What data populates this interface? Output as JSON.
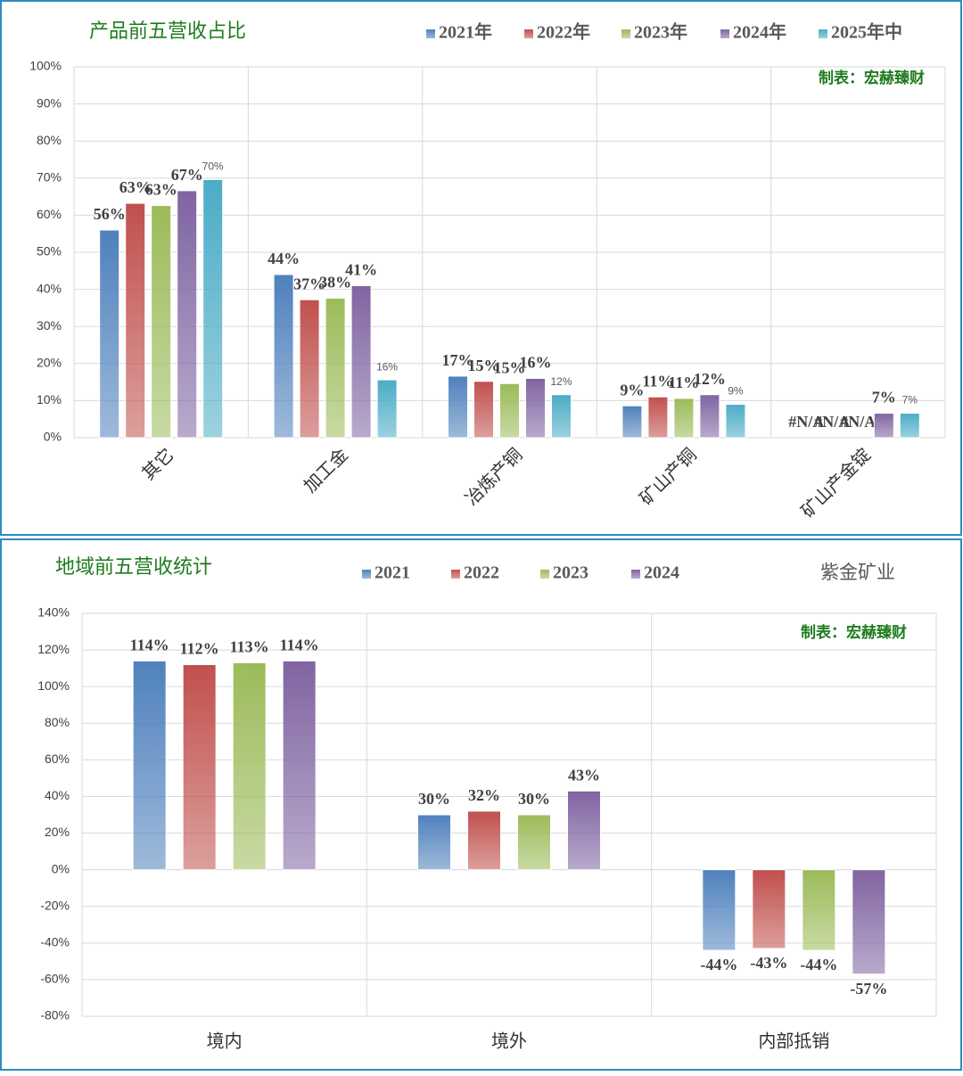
{
  "chart_data": [
    {
      "type": "bar",
      "title": "产品前五营收占比",
      "annotation": "制表：宏赫臻财",
      "categories": [
        "其它",
        "加工金",
        "冶炼产铜",
        "矿山产铜",
        "矿山产金锭"
      ],
      "series": [
        {
          "name": "2021年",
          "color": "#4f81bd",
          "values": [
            56,
            44,
            16.6,
            8.6,
            null
          ],
          "value_labels": [
            "56%",
            "44%",
            "17%",
            "9%",
            "#N/A"
          ]
        },
        {
          "name": "2022年",
          "color": "#c0504d",
          "values": [
            63.2,
            37.2,
            15.2,
            11,
            null
          ],
          "value_labels": [
            "63%",
            "37%",
            "15%",
            "11%",
            "#N/A"
          ]
        },
        {
          "name": "2023年",
          "color": "#9bbb59",
          "values": [
            62.6,
            37.6,
            14.6,
            10.6,
            null
          ],
          "value_labels": [
            "63%",
            "38%",
            "15%",
            "11%",
            "#N/A"
          ]
        },
        {
          "name": "2024年",
          "color": "#8064a2",
          "values": [
            66.6,
            41,
            16,
            11.6,
            6.6
          ],
          "value_labels": [
            "67%",
            "41%",
            "16%",
            "12%",
            "7%"
          ]
        },
        {
          "name": "2025年中",
          "color": "#4bacc6",
          "values": [
            69.6,
            15.6,
            11.6,
            9,
            6.6
          ],
          "value_labels": [
            "70%",
            "16%",
            "12%",
            "9%",
            "7%"
          ]
        }
      ],
      "ylim": [
        0,
        100
      ],
      "yticks": [
        {
          "value": 0,
          "label": "0%"
        },
        {
          "value": 10,
          "label": "10%"
        },
        {
          "value": 20,
          "label": "20%"
        },
        {
          "value": 30,
          "label": "30%"
        },
        {
          "value": 40,
          "label": "40%"
        },
        {
          "value": 50,
          "label": "50%"
        },
        {
          "value": 60,
          "label": "60%"
        },
        {
          "value": 70,
          "label": "70%"
        },
        {
          "value": 80,
          "label": "80%"
        },
        {
          "value": 90,
          "label": "90%"
        },
        {
          "value": 100,
          "label": "100%"
        }
      ],
      "grid": true
    },
    {
      "type": "bar",
      "title": "地域前五营收统计",
      "subtitle": "紫金矿业",
      "annotation": "制表：宏赫臻财",
      "categories": [
        "境内",
        "境外",
        "内部抵销"
      ],
      "series": [
        {
          "name": "2021",
          "color": "#4f81bd",
          "values": [
            114,
            30,
            -44
          ],
          "value_labels": [
            "114%",
            "30%",
            "-44%"
          ]
        },
        {
          "name": "2022",
          "color": "#c0504d",
          "values": [
            112,
            32,
            -43
          ],
          "value_labels": [
            "112%",
            "32%",
            "-43%"
          ]
        },
        {
          "name": "2023",
          "color": "#9bbb59",
          "values": [
            113,
            30,
            -44
          ],
          "value_labels": [
            "113%",
            "30%",
            "-44%"
          ]
        },
        {
          "name": "2024",
          "color": "#8064a2",
          "values": [
            114,
            43,
            -57
          ],
          "value_labels": [
            "114%",
            "43%",
            "-57%"
          ]
        }
      ],
      "ylim": [
        -80,
        140
      ],
      "yticks": [
        {
          "value": -80,
          "label": "-80%"
        },
        {
          "value": -60,
          "label": "-60%"
        },
        {
          "value": -40,
          "label": "-40%"
        },
        {
          "value": -20,
          "label": "-20%"
        },
        {
          "value": 0,
          "label": "0%"
        },
        {
          "value": 20,
          "label": "20%"
        },
        {
          "value": 40,
          "label": "40%"
        },
        {
          "value": 60,
          "label": "60%"
        },
        {
          "value": 80,
          "label": "80%"
        },
        {
          "value": 100,
          "label": "100%"
        },
        {
          "value": 120,
          "label": "120%"
        },
        {
          "value": 140,
          "label": "140%"
        }
      ],
      "grid": true
    }
  ]
}
